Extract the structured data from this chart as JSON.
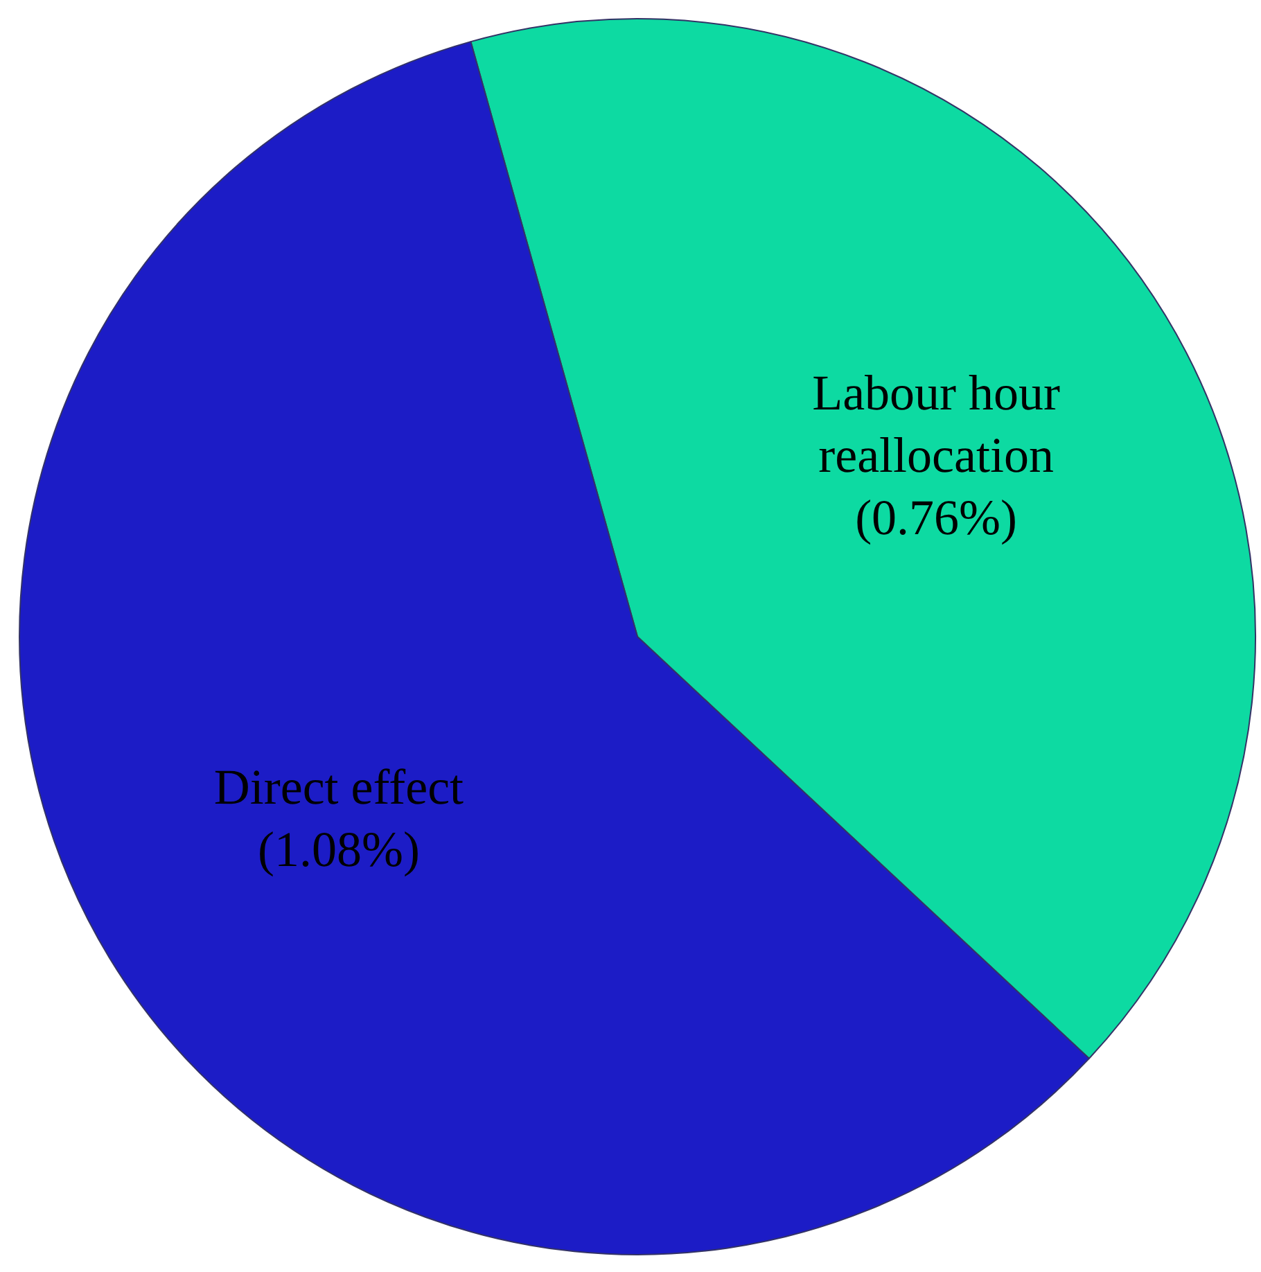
{
  "chart_data": {
    "type": "pie",
    "categories": [
      "Labour hour reallocation",
      "Direct effect"
    ],
    "values": [
      0.76,
      1.08
    ],
    "value_labels": [
      "(0.76%)",
      "(1.08%)"
    ],
    "colors": [
      "#0ddaa2",
      "#1c1cc6"
    ]
  }
}
